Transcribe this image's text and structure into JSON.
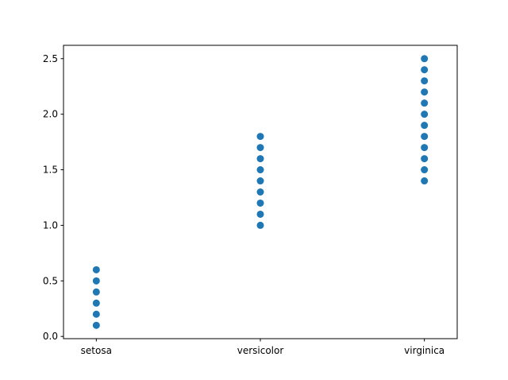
{
  "chart_data": {
    "type": "scatter",
    "title": "",
    "xlabel": "",
    "ylabel": "",
    "categories": [
      "setosa",
      "versicolor",
      "virginica"
    ],
    "ylim": [
      -0.02,
      2.62
    ],
    "yticks": [
      "0.0",
      "0.5",
      "1.0",
      "1.5",
      "2.0",
      "2.5"
    ],
    "grid": false,
    "marker_color": "#1f77b4",
    "series": [
      {
        "category": "setosa",
        "values": [
          0.1,
          0.2,
          0.3,
          0.4,
          0.5,
          0.6
        ]
      },
      {
        "category": "versicolor",
        "values": [
          1.0,
          1.1,
          1.2,
          1.3,
          1.4,
          1.5,
          1.6,
          1.7,
          1.8
        ]
      },
      {
        "category": "virginica",
        "values": [
          1.4,
          1.5,
          1.6,
          1.7,
          1.8,
          1.9,
          2.0,
          2.1,
          2.2,
          2.3,
          2.4,
          2.5
        ]
      }
    ]
  }
}
